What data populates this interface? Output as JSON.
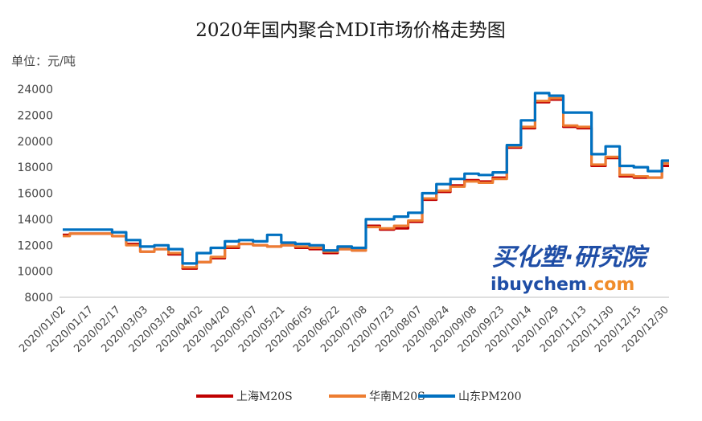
{
  "chart_data": {
    "type": "line",
    "title": "2020年国内聚合MDI市场价格走势图",
    "unit_label": "单位：元/吨",
    "ylim": [
      8000,
      24000
    ],
    "yticks": [
      8000,
      10000,
      12000,
      14000,
      16000,
      18000,
      20000,
      22000,
      24000
    ],
    "x_tick_labels": [
      "2020/01/02",
      "2020/01/17",
      "2020/02/17",
      "2020/03/03",
      "2020/03/18",
      "2020/04/02",
      "2020/04/20",
      "2020/05/07",
      "2020/05/21",
      "2020/06/05",
      "2020/06/22",
      "2020/07/08",
      "2020/07/23",
      "2020/08/07",
      "2020/08/24",
      "2020/09/08",
      "2020/09/23",
      "2020/10/14",
      "2020/10/29",
      "2020/11/13",
      "2020/11/30",
      "2020/12/15",
      "2020/12/30"
    ],
    "series": [
      {
        "name": "上海M20S",
        "color": "#c00000",
        "values": [
          12800,
          12900,
          12900,
          12900,
          12700,
          12100,
          11500,
          11700,
          11300,
          10200,
          10700,
          11000,
          11800,
          12100,
          12000,
          11900,
          12000,
          11800,
          11700,
          11400,
          11700,
          11600,
          13500,
          13200,
          13300,
          13800,
          15500,
          16100,
          16600,
          17000,
          16900,
          17200,
          19500,
          21000,
          23000,
          23200,
          21100,
          21000,
          18100,
          18700,
          17300,
          17200,
          17200,
          18100
        ]
      },
      {
        "name": "华南M20S",
        "color": "#ed7d31",
        "values": [
          12700,
          12900,
          12900,
          12900,
          12700,
          12000,
          11500,
          11700,
          11400,
          10300,
          10700,
          11100,
          11900,
          12100,
          12000,
          11900,
          12000,
          11900,
          11800,
          11500,
          11700,
          11600,
          13400,
          13300,
          13500,
          13900,
          15600,
          16200,
          16500,
          16900,
          16800,
          17100,
          19600,
          21100,
          23100,
          23300,
          21200,
          21100,
          18200,
          18800,
          17400,
          17300,
          17200,
          18300
        ]
      },
      {
        "name": "山东PM200",
        "color": "#0070c0",
        "values": [
          13200,
          13200,
          13200,
          13200,
          13000,
          12400,
          11900,
          12000,
          11700,
          10600,
          11400,
          11800,
          12300,
          12400,
          12300,
          12800,
          12200,
          12100,
          12000,
          11600,
          11900,
          11800,
          14000,
          14000,
          14200,
          14500,
          16000,
          16700,
          17100,
          17500,
          17400,
          17600,
          19700,
          21600,
          23700,
          23500,
          22200,
          22200,
          19000,
          19600,
          18100,
          18000,
          17700,
          18500
        ]
      }
    ]
  },
  "watermark": {
    "cn_text": "买化塑·研究院",
    "en_prefix": "ibuychem",
    "en_suffix": ".com",
    "colors": {
      "blue": "#1f4ea6",
      "orange": "#f08c2a"
    }
  }
}
